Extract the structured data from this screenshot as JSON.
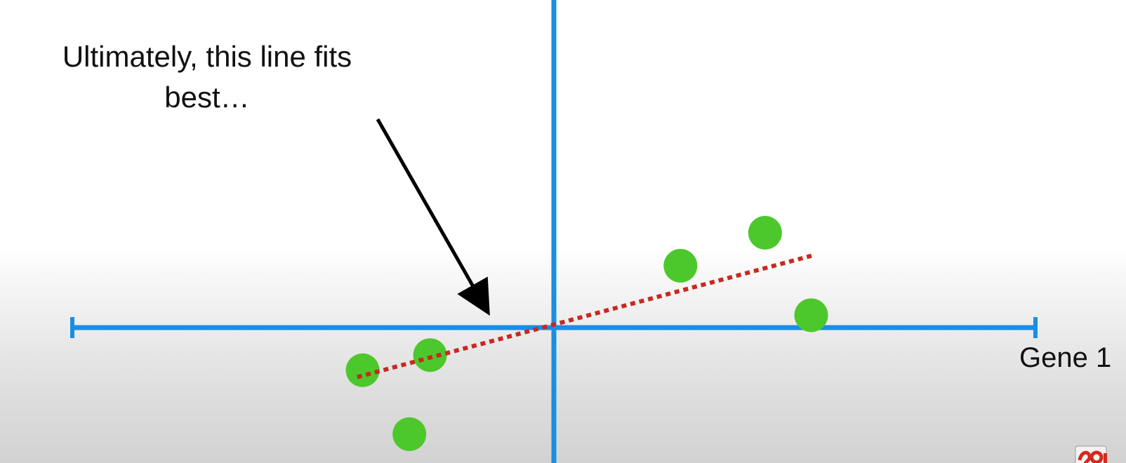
{
  "chart_data": {
    "type": "scatter",
    "title": "",
    "xlabel": "Gene 1",
    "ylabel": "",
    "xlim": [
      -7,
      7
    ],
    "ylim": [
      -2,
      4.8
    ],
    "grid": false,
    "points": [
      {
        "x": -2.78,
        "y": -0.62
      },
      {
        "x": -1.8,
        "y": -0.4
      },
      {
        "x": -2.1,
        "y": -1.55
      },
      {
        "x": 1.84,
        "y": 0.9
      },
      {
        "x": 3.07,
        "y": 1.38
      },
      {
        "x": 3.74,
        "y": 0.18
      }
    ],
    "fit_line": {
      "x": [
        -2.86,
        3.8
      ],
      "y": [
        -0.72,
        1.06
      ],
      "style": "dotted"
    },
    "annotation": {
      "text_line1": "Ultimately, this line fits",
      "text_line2": "best…",
      "arrow_target": {
        "x": -0.94,
        "y": 0.18
      }
    }
  },
  "colors": {
    "axis": "#1a8ee3",
    "points": "#4cc82c",
    "fit_line": "#c8291f",
    "arrow": "#000000",
    "text": "#111111"
  },
  "icons": {
    "logo": "statquest-logo"
  }
}
